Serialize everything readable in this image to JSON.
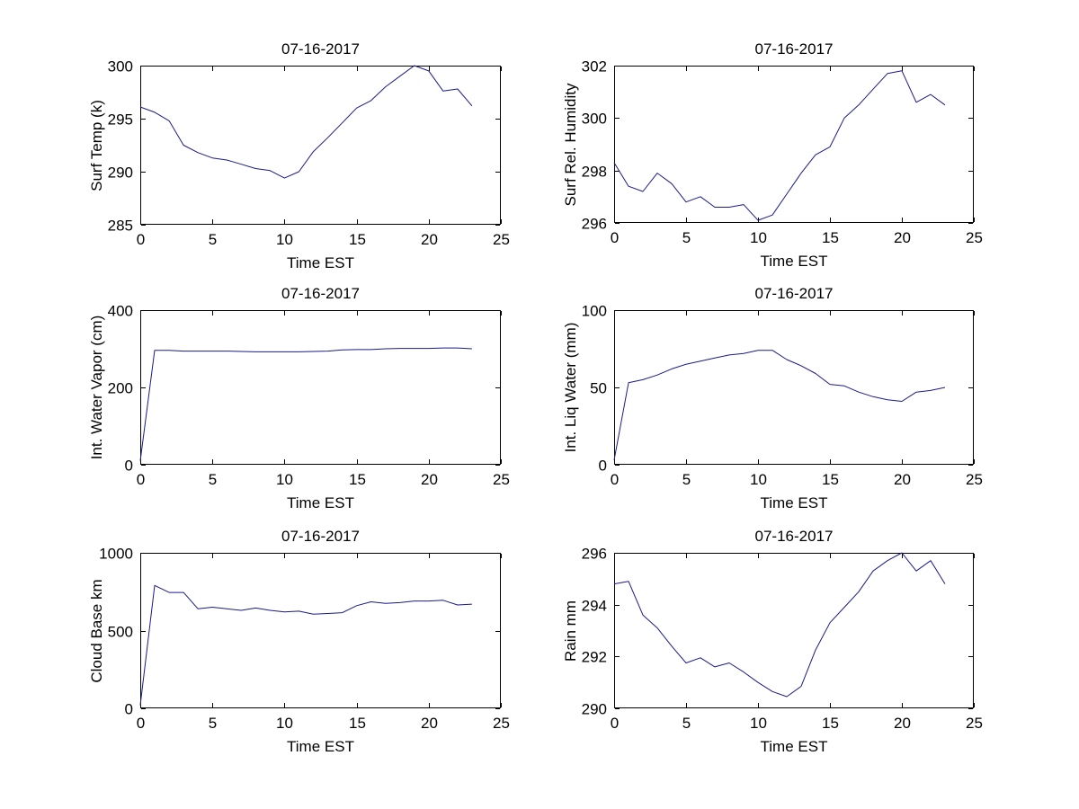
{
  "figure": {
    "background": "#ffffff",
    "line_color": "#1a1a8c",
    "axis_color": "#000000",
    "text_color": "#000000",
    "layout": "3x2 subplots"
  },
  "chart_data": [
    {
      "type": "line",
      "title": "07-16-2017",
      "xlabel": "Time EST",
      "ylabel": "Surf Temp (k)",
      "x": [
        0,
        1,
        2,
        3,
        4,
        5,
        6,
        7,
        8,
        9,
        10,
        11,
        12,
        13,
        14,
        15,
        16,
        17,
        18,
        19,
        20,
        21,
        22,
        23
      ],
      "values": [
        296.1,
        295.6,
        294.8,
        292.5,
        291.8,
        291.3,
        291.1,
        290.7,
        290.3,
        290.1,
        289.4,
        290.0,
        291.9,
        293.2,
        294.6,
        296.0,
        296.7,
        298.0,
        299.0,
        300.0,
        299.5,
        297.6,
        297.8,
        296.2
      ],
      "xlim": [
        0,
        25
      ],
      "ylim": [
        285,
        300
      ],
      "xticks": [
        0,
        5,
        10,
        15,
        20,
        25
      ],
      "yticks": [
        285,
        290,
        295,
        300
      ],
      "grid": false,
      "legend": null
    },
    {
      "type": "line",
      "title": "07-16-2017",
      "xlabel": "Time EST",
      "ylabel": "Surf Rel. Humidity",
      "x": [
        0,
        1,
        2,
        3,
        4,
        5,
        6,
        7,
        8,
        9,
        10,
        11,
        12,
        13,
        14,
        15,
        16,
        17,
        18,
        19,
        20,
        21,
        22,
        23
      ],
      "values": [
        298.3,
        297.4,
        297.2,
        297.9,
        297.5,
        296.8,
        297.0,
        296.6,
        296.6,
        296.7,
        296.1,
        296.3,
        297.1,
        297.9,
        298.6,
        298.9,
        300.0,
        300.5,
        301.1,
        301.7,
        301.8,
        300.6,
        300.9,
        300.5
      ],
      "xlim": [
        0,
        25
      ],
      "ylim": [
        296,
        302
      ],
      "xticks": [
        0,
        5,
        10,
        15,
        20,
        25
      ],
      "yticks": [
        296,
        298,
        300,
        302
      ],
      "grid": false,
      "legend": null
    },
    {
      "type": "line",
      "title": "07-16-2017",
      "xlabel": "Time EST",
      "ylabel": "Int. Water Vapor (cm)",
      "x": [
        0,
        1,
        2,
        3,
        4,
        5,
        6,
        7,
        8,
        9,
        10,
        11,
        12,
        13,
        14,
        15,
        16,
        17,
        18,
        19,
        20,
        21,
        22,
        23
      ],
      "values": [
        10,
        296,
        296,
        294,
        294,
        294,
        294,
        293,
        292,
        292,
        292,
        292,
        293,
        294,
        297,
        298,
        298,
        300,
        301,
        301,
        301,
        302,
        302,
        300
      ],
      "xlim": [
        0,
        25
      ],
      "ylim": [
        0,
        400
      ],
      "xticks": [
        0,
        5,
        10,
        15,
        20,
        25
      ],
      "yticks": [
        0,
        200,
        400
      ],
      "grid": false,
      "legend": null
    },
    {
      "type": "line",
      "title": "07-16-2017",
      "xlabel": "Time EST",
      "ylabel": "Int. Liq Water (mm)",
      "x": [
        0,
        1,
        2,
        3,
        4,
        5,
        6,
        7,
        8,
        9,
        10,
        11,
        12,
        13,
        14,
        15,
        16,
        17,
        18,
        19,
        20,
        21,
        22,
        23
      ],
      "values": [
        3,
        53,
        55,
        58,
        62,
        65,
        67,
        69,
        71,
        72,
        74,
        74,
        68,
        64,
        59,
        52,
        51,
        47,
        44,
        42,
        41,
        47,
        48,
        50
      ],
      "xlim": [
        0,
        25
      ],
      "ylim": [
        0,
        100
      ],
      "xticks": [
        0,
        5,
        10,
        15,
        20,
        25
      ],
      "yticks": [
        0,
        50,
        100
      ],
      "grid": false,
      "legend": null
    },
    {
      "type": "line",
      "title": "07-16-2017",
      "xlabel": "Time EST",
      "ylabel": "Cloud Base km",
      "x": [
        0,
        1,
        2,
        3,
        4,
        5,
        6,
        7,
        8,
        9,
        10,
        11,
        12,
        13,
        14,
        15,
        16,
        17,
        18,
        19,
        20,
        21,
        22,
        23
      ],
      "values": [
        20,
        790,
        745,
        745,
        640,
        650,
        640,
        630,
        645,
        630,
        620,
        625,
        605,
        610,
        615,
        660,
        685,
        675,
        680,
        690,
        690,
        695,
        665,
        670
      ],
      "xlim": [
        0,
        25
      ],
      "ylim": [
        0,
        1000
      ],
      "xticks": [
        0,
        5,
        10,
        15,
        20,
        25
      ],
      "yticks": [
        0,
        500,
        1000
      ],
      "grid": false,
      "legend": null
    },
    {
      "type": "line",
      "title": "07-16-2017",
      "xlabel": "Time EST",
      "ylabel": "Rain mm",
      "x": [
        0,
        1,
        2,
        3,
        4,
        5,
        6,
        7,
        8,
        9,
        10,
        11,
        12,
        13,
        14,
        15,
        16,
        17,
        18,
        19,
        20,
        21,
        22,
        23
      ],
      "values": [
        294.8,
        294.9,
        293.6,
        293.1,
        292.4,
        291.75,
        291.95,
        291.6,
        291.75,
        291.4,
        291.0,
        290.65,
        290.45,
        290.85,
        292.25,
        293.3,
        293.9,
        294.5,
        295.3,
        295.7,
        296.0,
        295.3,
        295.7,
        294.8
      ],
      "xlim": [
        0,
        25
      ],
      "ylim": [
        290,
        296
      ],
      "xticks": [
        0,
        5,
        10,
        15,
        20,
        25
      ],
      "yticks": [
        290,
        292,
        294,
        296
      ],
      "grid": false,
      "legend": null
    }
  ]
}
